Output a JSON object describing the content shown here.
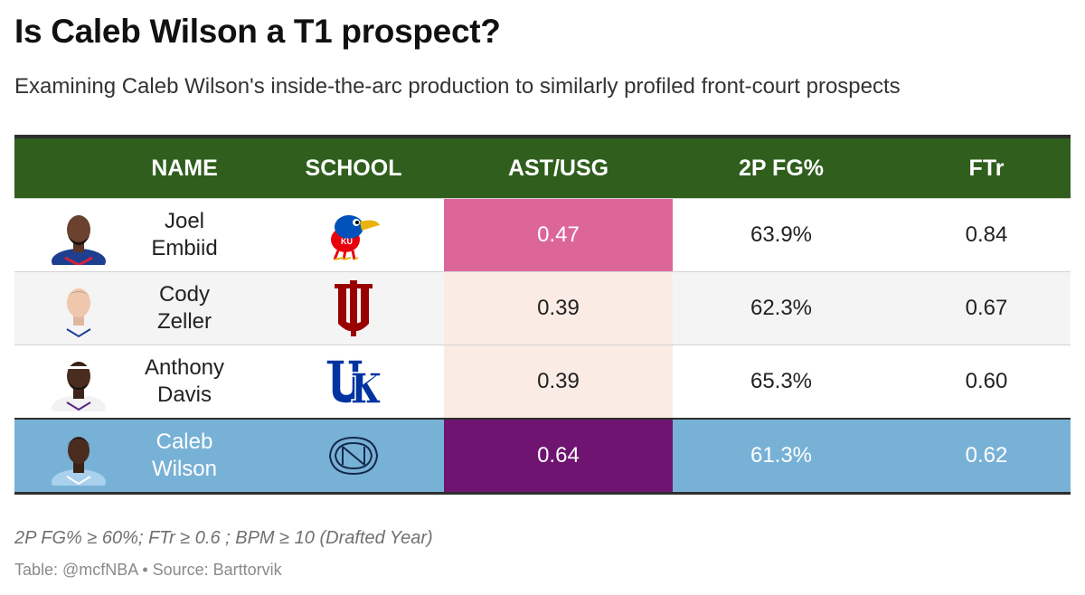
{
  "title": "Is Caleb Wilson a T1 prospect?",
  "subtitle": "Examining Caleb Wilson's inside-the-arc production to similarly profiled front-court prospects",
  "columns": [
    "NAME",
    "SCHOOL",
    "AST/USG",
    "2P FG%",
    "FTr"
  ],
  "colors": {
    "header_bg": "#2f5e1d",
    "highlight_row": "#78b1d6",
    "ast_high": "#dd6699",
    "ast_low": "#faece4",
    "ast_max": "#6f1470"
  },
  "chart_data": {
    "type": "table",
    "rows": [
      {
        "name": "Joel Embiid",
        "name_line1": "Joel",
        "name_line2": "Embiid",
        "school": "Kansas",
        "logo_icon": "kansas-jayhawk-logo",
        "ast_usg": "0.47",
        "fg2": "63.9%",
        "ftr": "0.84"
      },
      {
        "name": "Cody Zeller",
        "name_line1": "Cody",
        "name_line2": "Zeller",
        "school": "Indiana",
        "logo_icon": "indiana-iu-logo",
        "ast_usg": "0.39",
        "fg2": "62.3%",
        "ftr": "0.67"
      },
      {
        "name": "Anthony Davis",
        "name_line1": "Anthony",
        "name_line2": "Davis",
        "school": "Kentucky",
        "logo_icon": "kentucky-uk-logo",
        "ast_usg": "0.39",
        "fg2": "65.3%",
        "ftr": "0.60"
      },
      {
        "name": "Caleb Wilson",
        "name_line1": "Caleb",
        "name_line2": "Wilson",
        "school": "North Carolina",
        "logo_icon": "unc-nc-logo",
        "ast_usg": "0.64",
        "fg2": "61.3%",
        "ftr": "0.62"
      }
    ]
  },
  "footnote": "2P FG% ≥ 60%; FTr ≥ 0.6 ; BPM ≥ 10 (Drafted Year)",
  "source": "Table: @mcfNBA • Source: Barttorvik"
}
